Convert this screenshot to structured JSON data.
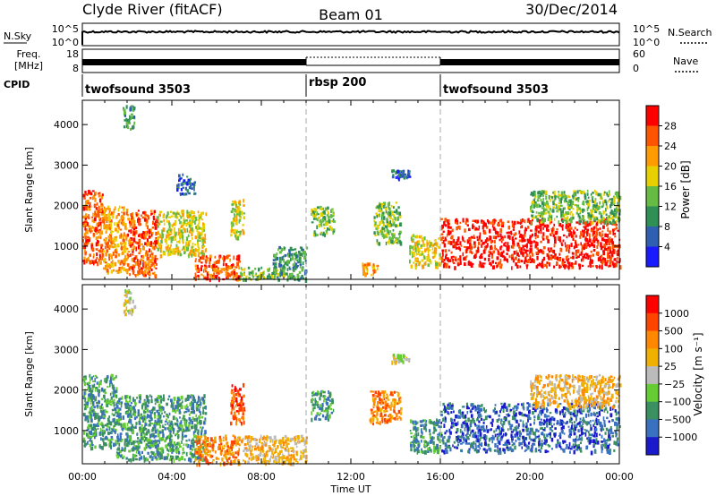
{
  "header": {
    "station": "Clyde River (fitACF)",
    "beam": "Beam 01",
    "date": "30/Dec/2014"
  },
  "panels": {
    "nsky_label": "N.Sky",
    "nsky_ticks_left": [
      "10^5",
      "10^0"
    ],
    "nsky_ticks_right": [
      "10^5",
      "10^0"
    ],
    "nsearch_label": "N.Search",
    "freq_label_line1": "Freq.",
    "freq_label_line2": "[MHz]",
    "freq_ticks_left": [
      "18",
      "8"
    ],
    "nave_label": "Nave",
    "nave_ticks_right": [
      "60",
      "0"
    ],
    "cpid_label": "CPID",
    "cpid_segments": [
      {
        "label": "twofsound 3503",
        "start": 0,
        "end": 10
      },
      {
        "label": "rbsp 200",
        "start": 10,
        "end": 16
      },
      {
        "label": "twofsound 3503",
        "start": 16,
        "end": 24
      }
    ]
  },
  "axes": {
    "ylabel": "Slant Range [km]",
    "xlabel": "Time UT",
    "xticks": [
      "00:00",
      "04:00",
      "08:00",
      "12:00",
      "16:00",
      "20:00",
      "00:00"
    ],
    "yticks": [
      "1000",
      "2000",
      "3000",
      "4000"
    ]
  },
  "colorbars": {
    "power": {
      "label": "Power [dB]",
      "ticks": [
        "4",
        "8",
        "12",
        "16",
        "20",
        "24",
        "28"
      ],
      "colors": [
        "#1a1aff",
        "#2f5fb0",
        "#2f8f55",
        "#66bb44",
        "#e8d000",
        "#ff9a00",
        "#ff5500",
        "#ff0000"
      ]
    },
    "velocity": {
      "label": "Velocity [m s⁻¹]",
      "ticks": [
        "1000",
        "500",
        "100",
        "25",
        "−25",
        "−100",
        "−500",
        "−1000"
      ],
      "colors": [
        "#1a1acc",
        "#3a70c0",
        "#3a9060",
        "#66cc33",
        "#bbbbbb",
        "#f0b000",
        "#ff8800",
        "#ff4400",
        "#ff0000"
      ]
    }
  },
  "chart_data": {
    "type": "heatmap",
    "x_unit": "hours UT",
    "xlim": [
      0,
      24
    ],
    "ylim": [
      180,
      4600
    ],
    "dashed_boundaries": [
      10,
      16
    ],
    "power_clusters": [
      {
        "t": [
          0.0,
          0.9
        ],
        "r": [
          600,
          2400
        ],
        "level": 6
      },
      {
        "t": [
          0.9,
          2.0
        ],
        "r": [
          400,
          2000
        ],
        "level": 5
      },
      {
        "t": [
          1.8,
          2.3
        ],
        "r": [
          3900,
          4500
        ],
        "level": 2
      },
      {
        "t": [
          2.0,
          3.3
        ],
        "r": [
          300,
          1900
        ],
        "level": 6
      },
      {
        "t": [
          3.3,
          5.5
        ],
        "r": [
          800,
          1900
        ],
        "level": 4
      },
      {
        "t": [
          4.2,
          5.0
        ],
        "r": [
          2300,
          2800
        ],
        "level": 1
      },
      {
        "t": [
          5.0,
          7.0
        ],
        "r": [
          200,
          800
        ],
        "level": 6
      },
      {
        "t": [
          6.6,
          7.2
        ],
        "r": [
          1200,
          2200
        ],
        "level": 4
      },
      {
        "t": [
          7.0,
          9.0
        ],
        "r": [
          200,
          500
        ],
        "level": 3
      },
      {
        "t": [
          8.5,
          10.0
        ],
        "r": [
          200,
          1000
        ],
        "level": 2
      },
      {
        "t": [
          10.2,
          11.2
        ],
        "r": [
          1300,
          2000
        ],
        "level": 3
      },
      {
        "t": [
          12.5,
          13.2
        ],
        "r": [
          300,
          600
        ],
        "level": 5
      },
      {
        "t": [
          13.0,
          14.2
        ],
        "r": [
          1100,
          2100
        ],
        "level": 3
      },
      {
        "t": [
          13.8,
          14.6
        ],
        "r": [
          2700,
          2900
        ],
        "level": 1
      },
      {
        "t": [
          14.6,
          16.0
        ],
        "r": [
          500,
          1300
        ],
        "level": 4
      },
      {
        "t": [
          16.0,
          24.0
        ],
        "r": [
          500,
          1700
        ],
        "level": 7
      },
      {
        "t": [
          20.0,
          24.0
        ],
        "r": [
          1600,
          2400
        ],
        "level": 3
      }
    ],
    "velocity_clusters": [
      {
        "t": [
          0.0,
          1.5
        ],
        "r": [
          600,
          2400
        ],
        "level": 2
      },
      {
        "t": [
          1.8,
          2.3
        ],
        "r": [
          3900,
          4500
        ],
        "level": 4
      },
      {
        "t": [
          1.5,
          5.5
        ],
        "r": [
          300,
          1900
        ],
        "level": 2
      },
      {
        "t": [
          5.0,
          7.0
        ],
        "r": [
          200,
          900
        ],
        "level": 6
      },
      {
        "t": [
          6.6,
          7.2
        ],
        "r": [
          1200,
          2200
        ],
        "level": 7
      },
      {
        "t": [
          7.0,
          10.0
        ],
        "r": [
          200,
          900
        ],
        "level": 5
      },
      {
        "t": [
          10.2,
          11.2
        ],
        "r": [
          1300,
          2000
        ],
        "level": 2
      },
      {
        "t": [
          12.8,
          14.2
        ],
        "r": [
          1200,
          2000
        ],
        "level": 6
      },
      {
        "t": [
          13.8,
          14.6
        ],
        "r": [
          2700,
          2900
        ],
        "level": 4
      },
      {
        "t": [
          14.6,
          16.0
        ],
        "r": [
          500,
          1300
        ],
        "level": 2
      },
      {
        "t": [
          16.0,
          24.0
        ],
        "r": [
          500,
          1700
        ],
        "level": 1
      },
      {
        "t": [
          20.0,
          24.0
        ],
        "r": [
          1600,
          2400
        ],
        "level": 5
      }
    ]
  }
}
